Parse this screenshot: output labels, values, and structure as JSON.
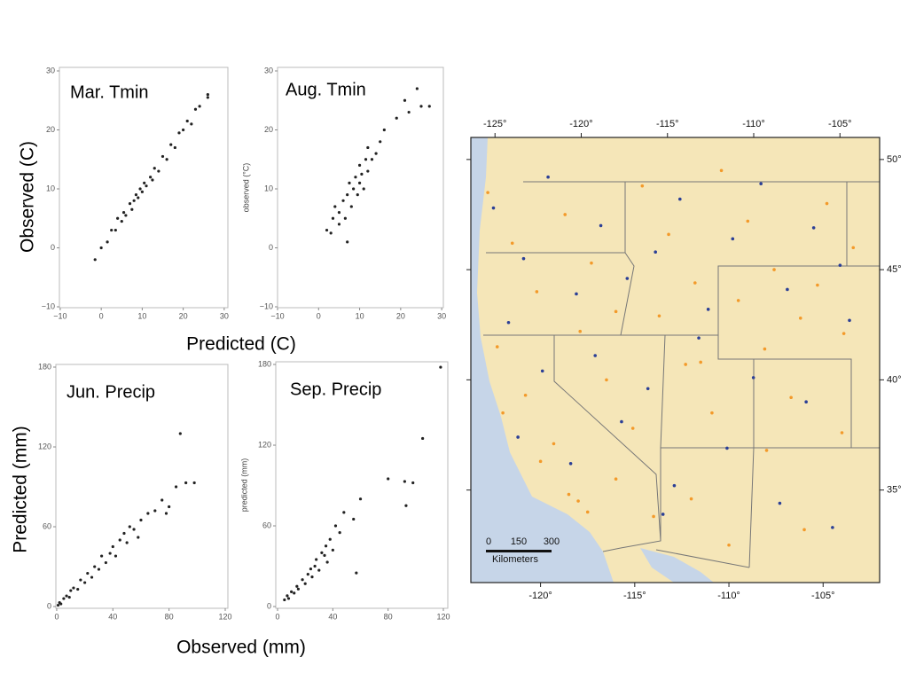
{
  "chart_data": [
    {
      "type": "scatter",
      "title": "Mar. Tmin",
      "x": [
        -1.5,
        0,
        1.5,
        2.5,
        3.5,
        4,
        5,
        5.5,
        6,
        7,
        7.5,
        8,
        8.5,
        9,
        9.5,
        10,
        10.5,
        11,
        12,
        12.5,
        13,
        14,
        15,
        16,
        17,
        18,
        19,
        20,
        21,
        22,
        23,
        24,
        26,
        26
      ],
      "values": [
        -2,
        0,
        1,
        3,
        3,
        5,
        4.5,
        6,
        5.5,
        7.5,
        6.5,
        8,
        9,
        8.5,
        10,
        9.5,
        11,
        10.5,
        12,
        11.5,
        13.5,
        13,
        15.5,
        15,
        17.5,
        17,
        19.5,
        20,
        21.5,
        21,
        23.5,
        24,
        25.5,
        26
      ],
      "color": "#222222",
      "xlim": [
        -10.2,
        30.9
      ],
      "ylim": [
        -10.15,
        30.6
      ],
      "xticks": [
        {
          "value": -10,
          "label": "−10"
        },
        0,
        10,
        20,
        30
      ],
      "yticks": [
        {
          "value": -10,
          "label": "−10"
        },
        0,
        10,
        20,
        30
      ]
    },
    {
      "type": "scatter",
      "title": "Aug. Tmin",
      "ylabel": "observed (°C)",
      "x": [
        2,
        3,
        3.5,
        4,
        5,
        5,
        6,
        6.5,
        7,
        7.5,
        8,
        8.5,
        9,
        9.5,
        10,
        10,
        10.5,
        11,
        11.5,
        12,
        12,
        13,
        14,
        15,
        16,
        7,
        19,
        21,
        24,
        25,
        27,
        22
      ],
      "values": [
        3,
        2.5,
        5,
        7,
        4,
        6,
        8,
        5,
        9,
        11,
        7,
        10,
        12,
        9,
        11,
        14,
        12.5,
        10,
        15,
        13,
        17,
        15,
        16,
        18,
        20,
        1,
        22,
        25,
        27,
        24,
        24,
        23
      ],
      "color": "#222222",
      "xlim": [
        -10,
        30.4
      ],
      "ylim": [
        -10.15,
        30.6
      ],
      "xticks": [
        {
          "value": -10,
          "label": "−10"
        },
        0,
        10,
        20,
        30
      ],
      "yticks": [
        {
          "value": -10,
          "label": "−10"
        },
        0,
        10,
        20,
        30
      ]
    },
    {
      "type": "scatter",
      "title": "Jun. Precip",
      "x": [
        1,
        2,
        3,
        5,
        7,
        9,
        10,
        12,
        15,
        17,
        20,
        22,
        25,
        27,
        30,
        32,
        35,
        38,
        40,
        42,
        45,
        48,
        50,
        52,
        55,
        58,
        60,
        65,
        70,
        75,
        78,
        80,
        85,
        88,
        92,
        98
      ],
      "values": [
        1,
        3,
        2,
        6,
        8,
        7,
        12,
        14,
        13,
        20,
        18,
        25,
        22,
        30,
        28,
        38,
        33,
        40,
        45,
        38,
        50,
        55,
        48,
        60,
        58,
        52,
        65,
        70,
        72,
        80,
        70,
        75,
        90,
        130,
        93,
        93
      ],
      "color": "#222222",
      "xlim": [
        -0.6,
        121.9
      ],
      "ylim": [
        -1.3,
        182
      ],
      "xticks": [
        0,
        40,
        80,
        120
      ],
      "yticks": [
        0,
        60,
        120,
        180
      ]
    },
    {
      "type": "scatter",
      "title": "Sep. Precip",
      "ylabel": "predicted (mm)",
      "x": [
        5,
        7,
        8,
        10,
        12,
        14,
        15,
        18,
        20,
        22,
        24,
        25,
        27,
        28,
        30,
        32,
        34,
        35,
        36,
        38,
        40,
        42,
        45,
        48,
        55,
        60,
        57,
        80,
        92,
        93,
        98,
        105,
        118
      ],
      "values": [
        5,
        8,
        6,
        11,
        10,
        15,
        13,
        20,
        17,
        24,
        28,
        22,
        30,
        35,
        27,
        40,
        38,
        45,
        33,
        50,
        42,
        60,
        55,
        70,
        65,
        80,
        25,
        95,
        93,
        75,
        92,
        125,
        178
      ],
      "color": "#222222",
      "xlim": [
        -1.3,
        123.2
      ],
      "ylim": [
        -1.3,
        182
      ],
      "xticks": [
        0,
        40,
        80,
        120
      ],
      "yticks": [
        0,
        60,
        120,
        180
      ]
    },
    {
      "type": "map",
      "xlim": [
        -123.7,
        -102.0
      ],
      "x2lim": [
        -126.4,
        -102.7
      ],
      "ylim": [
        30.8,
        51.0
      ],
      "xticks": [
        {
          "value": -120,
          "label": "-120°"
        },
        {
          "value": -115,
          "label": "-115°"
        },
        {
          "value": -110,
          "label": "-110°"
        },
        {
          "value": -105,
          "label": "-105°"
        }
      ],
      "x2ticks": [
        {
          "value": -125,
          "label": "-125°"
        },
        {
          "value": -120,
          "label": "-120°"
        },
        {
          "value": -115,
          "label": "-115°"
        },
        {
          "value": -110,
          "label": "-110°"
        },
        {
          "value": -105,
          "label": "-105°"
        }
      ],
      "yticks": [
        {
          "value": 50,
          "label": "50°"
        },
        {
          "value": 45,
          "label": "45°"
        },
        {
          "value": 40,
          "label": "40°"
        },
        {
          "value": 35,
          "label": "35°"
        }
      ],
      "series": [
        {
          "color": "#f39a2a",
          "x": [
            -122.8,
            -121.5,
            -120.2,
            -118.7,
            -117.3,
            -116.0,
            -114.6,
            -113.2,
            -111.8,
            -110.4,
            -109.0,
            -107.6,
            -106.2,
            -104.8,
            -103.4,
            -122.3,
            -120.8,
            -119.3,
            -117.9,
            -116.5,
            -115.1,
            -113.7,
            -112.3,
            -110.9,
            -109.5,
            -108.1,
            -106.7,
            -105.3,
            -103.9,
            -122.0,
            -120.0,
            -118.0,
            -116.0,
            -114.0,
            -112.0,
            -110.0,
            -108.0,
            -106.0,
            -104.0,
            -117.5,
            -118.5,
            -111.5
          ],
          "values": [
            48.5,
            46.2,
            44.0,
            47.5,
            45.3,
            43.1,
            48.8,
            46.6,
            44.4,
            49.5,
            47.2,
            45.0,
            42.8,
            48.0,
            46.0,
            41.5,
            39.3,
            37.1,
            42.2,
            40.0,
            37.8,
            42.9,
            40.7,
            38.5,
            43.6,
            41.4,
            39.2,
            44.3,
            42.1,
            38.5,
            36.3,
            34.5,
            35.5,
            33.8,
            34.6,
            32.5,
            36.8,
            33.2,
            37.6,
            34.0,
            34.8,
            40.8
          ]
        },
        {
          "color": "#2b3f96",
          "x": [
            -122.5,
            -120.9,
            -119.6,
            -118.1,
            -116.8,
            -115.4,
            -113.9,
            -112.6,
            -111.1,
            -109.8,
            -108.3,
            -106.9,
            -105.5,
            -104.1,
            -121.7,
            -119.9,
            -117.1,
            -114.3,
            -111.6,
            -108.7,
            -105.9,
            -103.6,
            -121.2,
            -118.4,
            -115.7,
            -112.9,
            -110.1,
            -107.3,
            -104.5,
            -113.5
          ],
          "values": [
            47.8,
            45.5,
            49.2,
            43.9,
            47.0,
            44.6,
            45.8,
            48.2,
            43.2,
            46.4,
            48.9,
            44.1,
            46.9,
            45.2,
            42.6,
            40.4,
            41.1,
            39.6,
            41.9,
            40.1,
            39.0,
            42.7,
            37.4,
            36.2,
            38.1,
            35.2,
            36.9,
            34.4,
            33.3,
            33.9
          ]
        }
      ],
      "scale_ticks": [
        0,
        150,
        300
      ],
      "scale_unit": "Kilometers"
    }
  ],
  "axis_titles": {
    "observed_c": "Observed (C)",
    "predicted_c": "Predicted (C)",
    "predicted_mm": "Predicted (mm)",
    "observed_mm": "Observed (mm)"
  }
}
